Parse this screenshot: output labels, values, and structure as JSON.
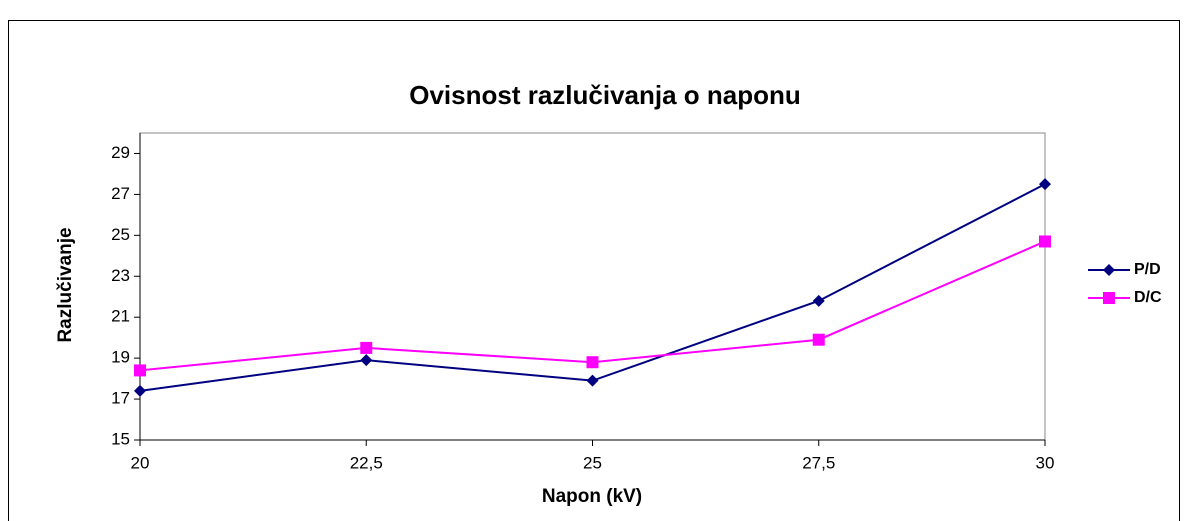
{
  "chart_data": {
    "type": "line",
    "title": "Ovisnost razlučivanja o naponu",
    "xlabel": "Napon (kV)",
    "ylabel": "Razlučivanje",
    "x": [
      20,
      22.5,
      25,
      27.5,
      30
    ],
    "xlim": [
      20,
      30
    ],
    "xticks": [
      20,
      {
        "value": 22.5,
        "label": "22,5"
      },
      25,
      {
        "value": 27.5,
        "label": "27,5"
      },
      30
    ],
    "ylim": [
      15,
      30
    ],
    "yticks": [
      15,
      17,
      19,
      21,
      23,
      25,
      27,
      29
    ],
    "grid": false,
    "legend": "right",
    "series": [
      {
        "name": "P/D",
        "color": "#000080",
        "marker": "diamond",
        "values": [
          17.4,
          18.9,
          17.9,
          21.8,
          27.5
        ]
      },
      {
        "name": "D/C",
        "color": "#ff00ff",
        "marker": "square",
        "values": [
          18.4,
          19.5,
          18.8,
          19.9,
          24.7
        ]
      }
    ]
  }
}
